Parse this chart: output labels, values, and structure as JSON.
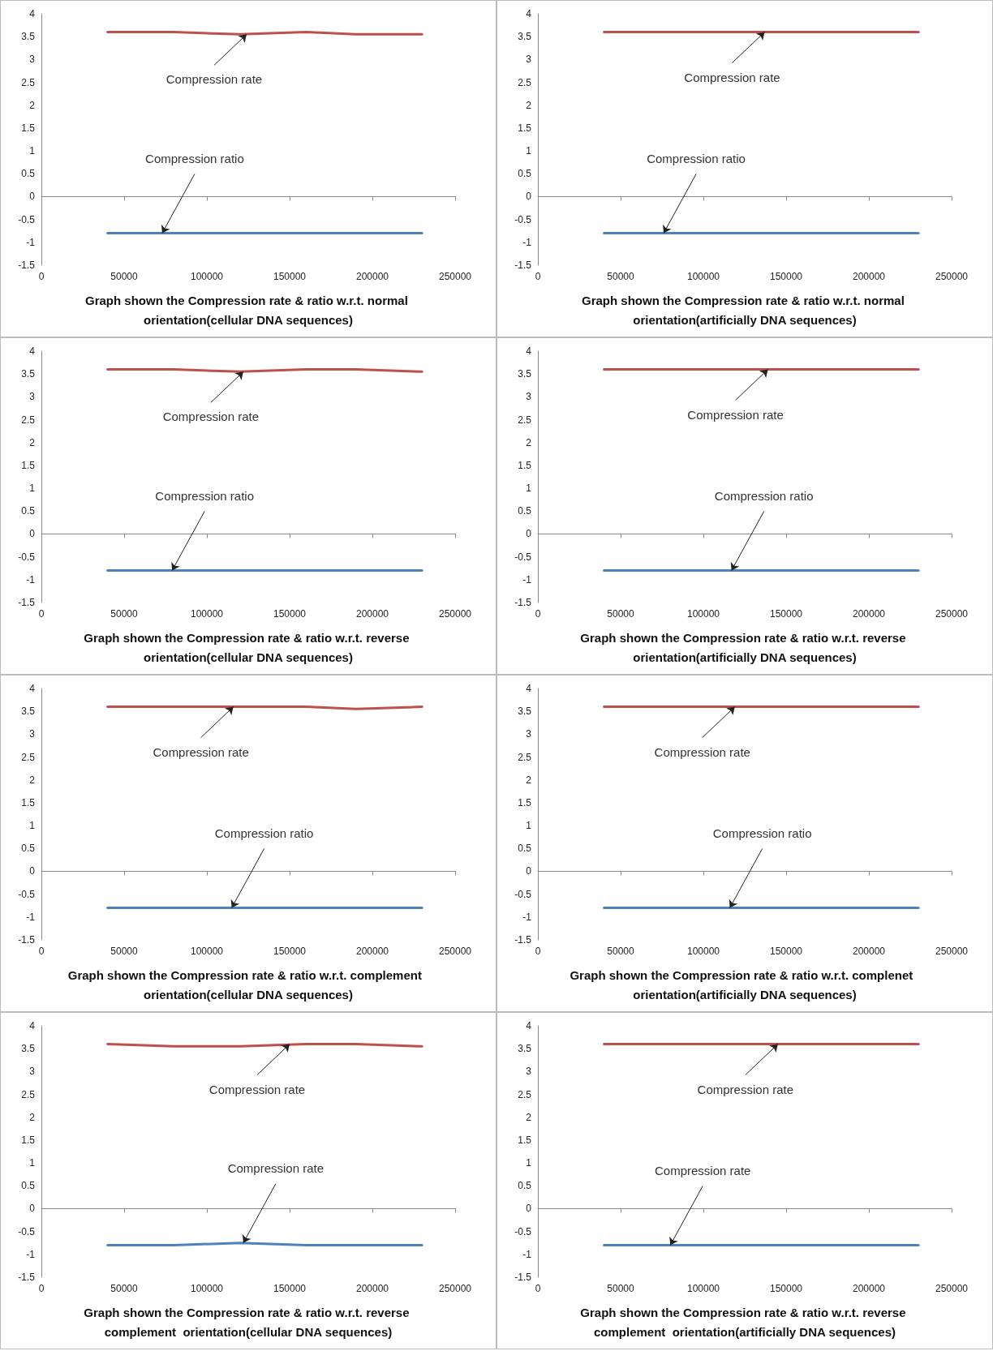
{
  "chart_data": [
    {
      "type": "line",
      "title": "Graph shown the Compression rate & ratio w.r.t. normal orientation(cellular DNA sequences)",
      "x": [
        40000,
        80000,
        120000,
        160000,
        190000,
        230000
      ],
      "series": [
        {
          "color": "#c0504d",
          "values": [
            3.6,
            3.6,
            3.55,
            3.6,
            3.55,
            3.55
          ]
        },
        {
          "color": "#4f81bd",
          "values": [
            -0.8,
            -0.8,
            -0.8,
            -0.8,
            -0.8,
            -0.8
          ]
        }
      ],
      "xlim": [
        0,
        250000
      ],
      "xticks": [
        0,
        50000,
        100000,
        150000,
        200000,
        250000
      ],
      "ylim": [
        -1.5,
        4
      ],
      "yticks": [
        -1.5,
        -1,
        -0.5,
        0,
        0.5,
        1,
        1.5,
        2,
        2.5,
        3,
        3.5,
        4
      ],
      "marker": "none",
      "line_style": "solid",
      "annotations": [
        {
          "text": "Compression rate",
          "x": 124000,
          "y": 3.55
        },
        {
          "text": "Compression ratio",
          "x": 73000,
          "y": -0.8
        }
      ]
    },
    {
      "type": "line",
      "title": "Graph shown the Compression rate & ratio w.r.t. normal orientation(artificially DNA sequences)",
      "x": [
        40000,
        80000,
        120000,
        160000,
        190000,
        230000
      ],
      "series": [
        {
          "color": "#c0504d",
          "values": [
            3.6,
            3.6,
            3.6,
            3.6,
            3.6,
            3.6
          ]
        },
        {
          "color": "#4f81bd",
          "values": [
            -0.8,
            -0.8,
            -0.8,
            -0.8,
            -0.8,
            -0.8
          ]
        }
      ],
      "xlim": [
        0,
        250000
      ],
      "xticks": [
        0,
        50000,
        100000,
        150000,
        200000,
        250000
      ],
      "ylim": [
        -1.5,
        4
      ],
      "yticks": [
        -1.5,
        -1,
        -0.5,
        0,
        0.5,
        1,
        1.5,
        2,
        2.5,
        3,
        3.5,
        4
      ],
      "marker": "none",
      "line_style": "solid",
      "annotations": [
        {
          "text": "Compression rate",
          "x": 137000,
          "y": 3.6
        },
        {
          "text": "Compression ratio",
          "x": 76000,
          "y": -0.8
        }
      ]
    },
    {
      "type": "line",
      "title": "Graph shown the Compression rate & ratio w.r.t. reverse orientation(cellular DNA sequences)",
      "x": [
        40000,
        80000,
        120000,
        160000,
        190000,
        230000
      ],
      "series": [
        {
          "color": "#c0504d",
          "values": [
            3.6,
            3.6,
            3.55,
            3.6,
            3.6,
            3.55
          ]
        },
        {
          "color": "#4f81bd",
          "values": [
            -0.8,
            -0.8,
            -0.8,
            -0.8,
            -0.8,
            -0.8
          ]
        }
      ],
      "xlim": [
        0,
        250000
      ],
      "xticks": [
        0,
        50000,
        100000,
        150000,
        200000,
        250000
      ],
      "ylim": [
        -1.5,
        4
      ],
      "yticks": [
        -1.5,
        -1,
        -0.5,
        0,
        0.5,
        1,
        1.5,
        2,
        2.5,
        3,
        3.5,
        4
      ],
      "marker": "none",
      "line_style": "solid",
      "annotations": [
        {
          "text": "Compression rate",
          "x": 122000,
          "y": 3.55
        },
        {
          "text": "Compression ratio",
          "x": 79000,
          "y": -0.8
        }
      ]
    },
    {
      "type": "line",
      "title": "Graph shown the Compression rate & ratio w.r.t. reverse orientation(artificially DNA sequences)",
      "x": [
        40000,
        80000,
        120000,
        160000,
        190000,
        230000
      ],
      "series": [
        {
          "color": "#c0504d",
          "values": [
            3.6,
            3.6,
            3.6,
            3.6,
            3.6,
            3.6
          ]
        },
        {
          "color": "#4f81bd",
          "values": [
            -0.8,
            -0.8,
            -0.8,
            -0.8,
            -0.8,
            -0.8
          ]
        }
      ],
      "xlim": [
        0,
        250000
      ],
      "xticks": [
        0,
        50000,
        100000,
        150000,
        200000,
        250000
      ],
      "ylim": [
        -1.5,
        4
      ],
      "yticks": [
        -1.5,
        -1,
        -0.5,
        0,
        0.5,
        1,
        1.5,
        2,
        2.5,
        3,
        3.5,
        4
      ],
      "marker": "none",
      "line_style": "solid",
      "annotations": [
        {
          "text": "Compression rate",
          "x": 139000,
          "y": 3.6
        },
        {
          "text": "Compression ratio",
          "x": 117000,
          "y": -0.8
        }
      ]
    },
    {
      "type": "line",
      "title": "Graph shown the Compression rate & ratio w.r.t. complement  orientation(cellular DNA sequences)",
      "x": [
        40000,
        80000,
        120000,
        160000,
        190000,
        230000
      ],
      "series": [
        {
          "color": "#c0504d",
          "values": [
            3.6,
            3.6,
            3.6,
            3.6,
            3.55,
            3.6
          ]
        },
        {
          "color": "#4f81bd",
          "values": [
            -0.8,
            -0.8,
            -0.8,
            -0.8,
            -0.8,
            -0.8
          ]
        }
      ],
      "xlim": [
        0,
        250000
      ],
      "xticks": [
        0,
        50000,
        100000,
        150000,
        200000,
        250000
      ],
      "ylim": [
        -1.5,
        4
      ],
      "yticks": [
        -1.5,
        -1,
        -0.5,
        0,
        0.5,
        1,
        1.5,
        2,
        2.5,
        3,
        3.5,
        4
      ],
      "marker": "none",
      "line_style": "solid",
      "annotations": [
        {
          "text": "Compression rate",
          "x": 116000,
          "y": 3.6
        },
        {
          "text": "Compression ratio",
          "x": 115000,
          "y": -0.8
        }
      ]
    },
    {
      "type": "line",
      "title": "Graph shown the Compression rate & ratio w.r.t. complenet  orientation(artificially DNA sequences)",
      "x": [
        40000,
        80000,
        120000,
        160000,
        190000,
        230000
      ],
      "series": [
        {
          "color": "#c0504d",
          "values": [
            3.6,
            3.6,
            3.6,
            3.6,
            3.6,
            3.6
          ]
        },
        {
          "color": "#4f81bd",
          "values": [
            -0.8,
            -0.8,
            -0.8,
            -0.8,
            -0.8,
            -0.8
          ]
        }
      ],
      "xlim": [
        0,
        250000
      ],
      "xticks": [
        0,
        50000,
        100000,
        150000,
        200000,
        250000
      ],
      "ylim": [
        -1.5,
        4
      ],
      "yticks": [
        -1.5,
        -1,
        -0.5,
        0,
        0.5,
        1,
        1.5,
        2,
        2.5,
        3,
        3.5,
        4
      ],
      "marker": "none",
      "line_style": "solid",
      "annotations": [
        {
          "text": "Compression rate",
          "x": 119000,
          "y": 3.6
        },
        {
          "text": "Compression ratio",
          "x": 116000,
          "y": -0.8
        }
      ]
    },
    {
      "type": "line",
      "title": "Graph shown the Compression rate & ratio w.r.t. reverse complement  orientation(cellular DNA sequences)",
      "x": [
        40000,
        80000,
        120000,
        160000,
        190000,
        230000
      ],
      "series": [
        {
          "color": "#c0504d",
          "values": [
            3.6,
            3.55,
            3.55,
            3.6,
            3.6,
            3.55
          ]
        },
        {
          "color": "#4f81bd",
          "values": [
            -0.8,
            -0.8,
            -0.75,
            -0.8,
            -0.8,
            -0.8
          ]
        }
      ],
      "xlim": [
        0,
        250000
      ],
      "xticks": [
        0,
        50000,
        100000,
        150000,
        200000,
        250000
      ],
      "ylim": [
        -1.5,
        4
      ],
      "yticks": [
        -1.5,
        -1,
        -0.5,
        0,
        0.5,
        1,
        1.5,
        2,
        2.5,
        3,
        3.5,
        4
      ],
      "marker": "none",
      "line_style": "solid",
      "annotations": [
        {
          "text": "Compression rate",
          "x": 150000,
          "y": 3.6
        },
        {
          "text": "Compression rate",
          "x": 122000,
          "y": -0.75
        }
      ]
    },
    {
      "type": "line",
      "title": "Graph shown the Compression rate & ratio w.r.t. reverse complement  orientation(artificially DNA sequences)",
      "x": [
        40000,
        80000,
        120000,
        160000,
        190000,
        230000
      ],
      "series": [
        {
          "color": "#c0504d",
          "values": [
            3.6,
            3.6,
            3.6,
            3.6,
            3.6,
            3.6
          ]
        },
        {
          "color": "#4f81bd",
          "values": [
            -0.8,
            -0.8,
            -0.8,
            -0.8,
            -0.8,
            -0.8
          ]
        }
      ],
      "xlim": [
        0,
        250000
      ],
      "xticks": [
        0,
        50000,
        100000,
        150000,
        200000,
        250000
      ],
      "ylim": [
        -1.5,
        4
      ],
      "yticks": [
        -1.5,
        -1,
        -0.5,
        0,
        0.5,
        1,
        1.5,
        2,
        2.5,
        3,
        3.5,
        4
      ],
      "marker": "none",
      "line_style": "solid",
      "annotations": [
        {
          "text": "Compression rate",
          "x": 145000,
          "y": 3.6
        },
        {
          "text": "Compression rate",
          "x": 80000,
          "y": -0.8
        }
      ]
    }
  ]
}
